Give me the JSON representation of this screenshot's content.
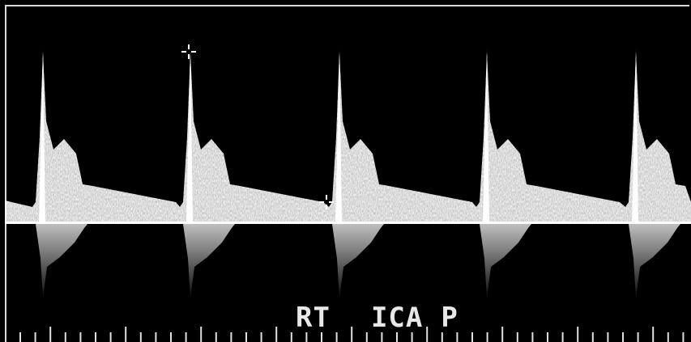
{
  "image": {
    "kind": "spectral-doppler-waveform",
    "background": "#000000",
    "waveform_color": "#ffffff",
    "baseline_color": "#ffffff"
  },
  "labels": {
    "side": "RT",
    "vessel": "ICA",
    "position": "P"
  },
  "markers": [
    {
      "name": "peak-systolic-caliper",
      "icon": "crosshair-icon"
    },
    {
      "name": "end-diastolic-caliper",
      "icon": "crosshair-icon"
    }
  ],
  "cardiac_cycles_visible": 5
}
